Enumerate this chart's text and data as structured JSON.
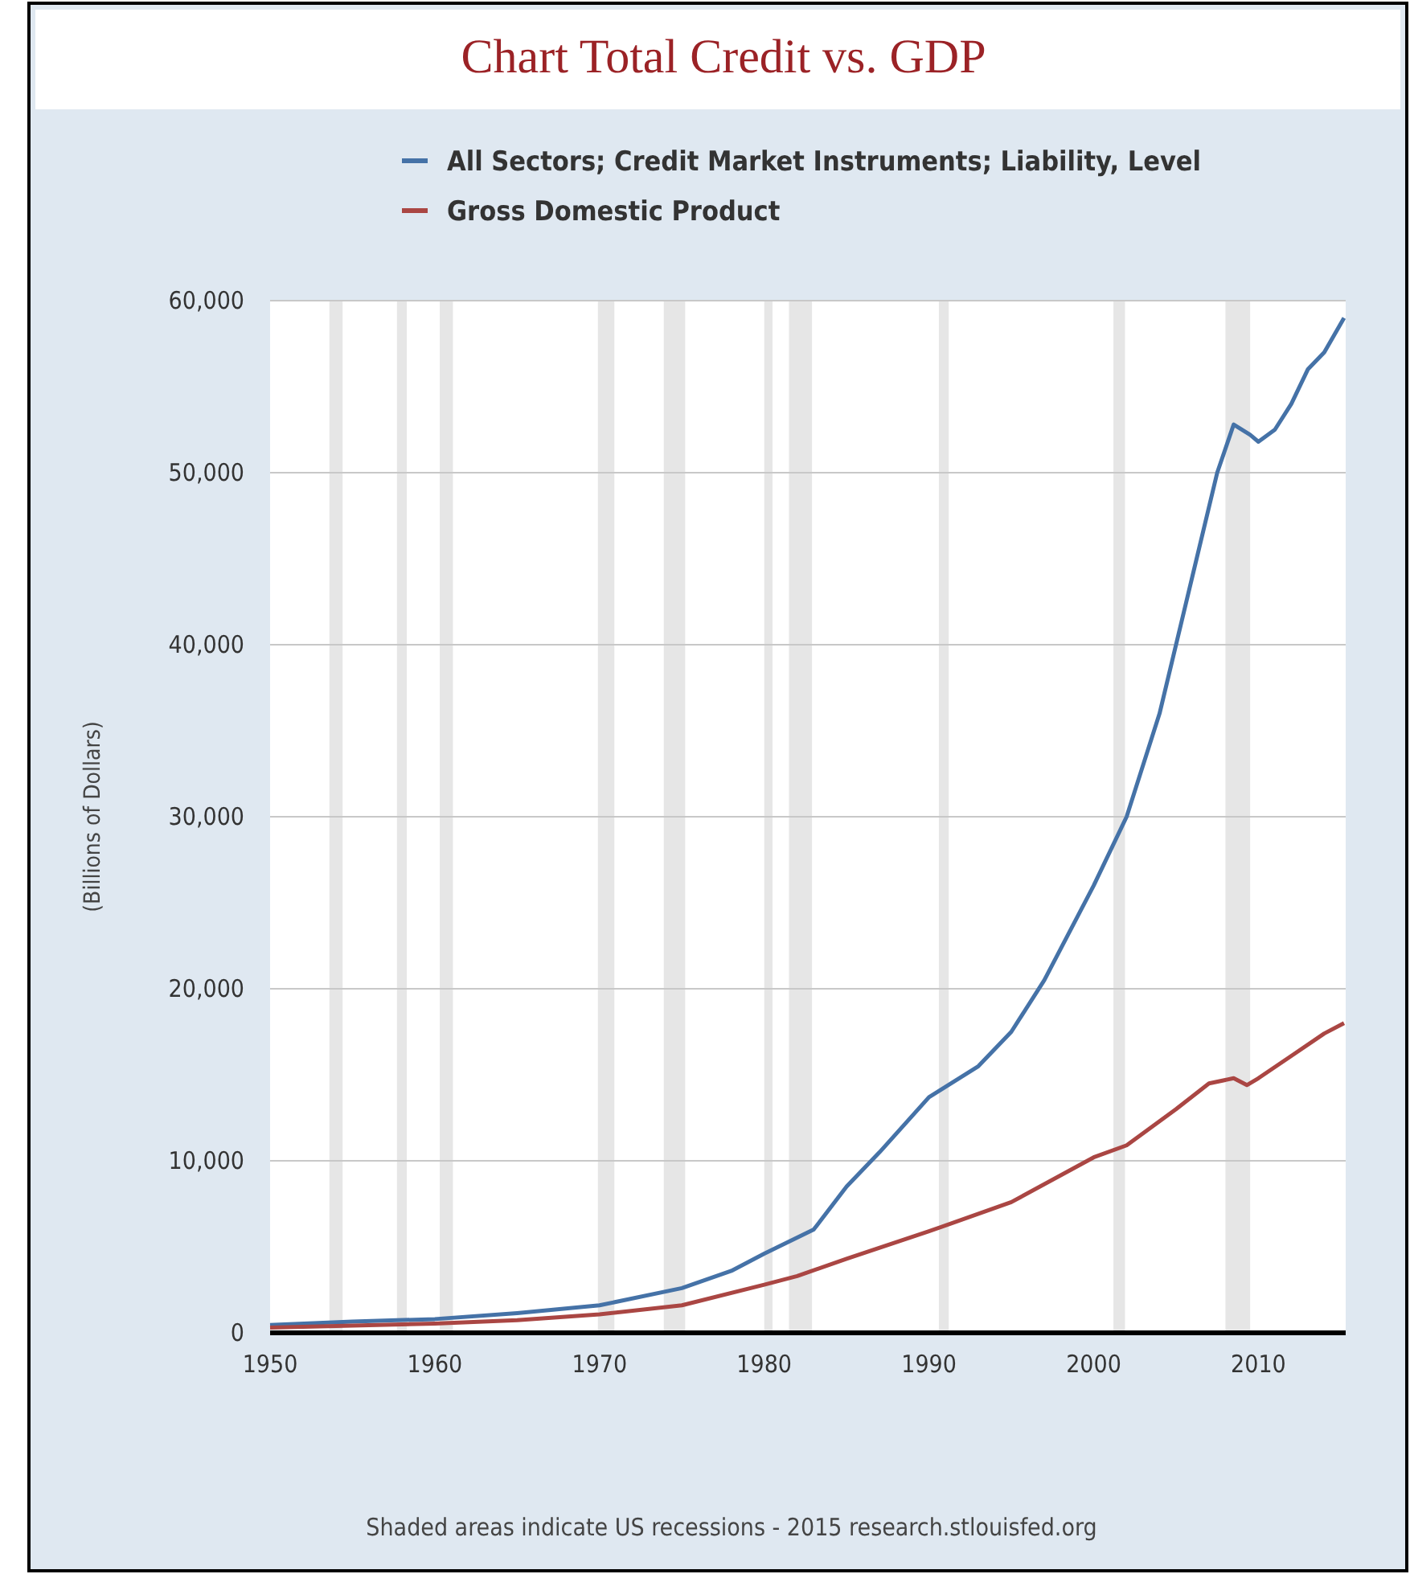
{
  "chart_data": {
    "type": "line",
    "title": "Chart Total Credit vs. GDP",
    "ylabel": "(Billions of Dollars)",
    "annotations": [
      "Shaded areas indicate US recessions - 2015 research.stlouisfed.org"
    ],
    "series": [
      {
        "name": "All Sectors; Credit Market Instruments; Liability, Level",
        "color": "#4572a7",
        "x": [
          1950,
          1955,
          1960,
          1965,
          1970,
          1975,
          1978,
          1980,
          1983,
          1985,
          1987,
          1990,
          1993,
          1995,
          1997,
          2000,
          2002,
          2004,
          2006,
          2007.5,
          2008.5,
          2009.5,
          2010,
          2011,
          2012,
          2013,
          2014,
          2015.2
        ],
        "values": [
          450,
          650,
          800,
          1150,
          1600,
          2600,
          3600,
          4600,
          6000,
          8500,
          10500,
          13700,
          15500,
          17500,
          20500,
          26000,
          30000,
          36000,
          44000,
          50000,
          52800,
          52200,
          51800,
          52500,
          54000,
          56000,
          57000,
          59000
        ]
      },
      {
        "name": "Gross Domestic Product",
        "color": "#aa4643",
        "x": [
          1950,
          1955,
          1960,
          1965,
          1970,
          1975,
          1980,
          1982,
          1985,
          1990,
          1995,
          2000,
          2002,
          2005,
          2007,
          2008.5,
          2009.3,
          2010,
          2012,
          2014,
          2015.2
        ],
        "values": [
          300,
          420,
          540,
          740,
          1070,
          1600,
          2800,
          3300,
          4300,
          5900,
          7600,
          10200,
          10900,
          13000,
          14500,
          14800,
          14400,
          14800,
          16100,
          17400,
          18000
        ]
      }
    ],
    "xlim": [
      1950,
      2015.3
    ],
    "xticks": [
      1950,
      1960,
      1970,
      1980,
      1990,
      2000,
      2010
    ],
    "ylim": [
      0,
      60000
    ],
    "yticks": [
      {
        "value": 0,
        "label": "0"
      },
      {
        "value": 10000,
        "label": "10,000"
      },
      {
        "value": 20000,
        "label": "20,000"
      },
      {
        "value": 30000,
        "label": "30,000"
      },
      {
        "value": 40000,
        "label": "40,000"
      },
      {
        "value": 50000,
        "label": "50,000"
      },
      {
        "value": 60000,
        "label": "60,000"
      }
    ],
    "bands": [
      {
        "axis": "x",
        "from": 1953.6,
        "to": 1954.4,
        "color": "#e6e6e6"
      },
      {
        "axis": "x",
        "from": 1957.7,
        "to": 1958.3,
        "color": "#e6e6e6"
      },
      {
        "axis": "x",
        "from": 1960.3,
        "to": 1961.1,
        "color": "#e6e6e6"
      },
      {
        "axis": "x",
        "from": 1969.9,
        "to": 1970.9,
        "color": "#e6e6e6"
      },
      {
        "axis": "x",
        "from": 1973.9,
        "to": 1975.2,
        "color": "#e6e6e6"
      },
      {
        "axis": "x",
        "from": 1980.0,
        "to": 1980.5,
        "color": "#e6e6e6"
      },
      {
        "axis": "x",
        "from": 1981.5,
        "to": 1982.9,
        "color": "#e6e6e6"
      },
      {
        "axis": "x",
        "from": 1990.6,
        "to": 1991.2,
        "color": "#e6e6e6"
      },
      {
        "axis": "x",
        "from": 2001.2,
        "to": 2001.9,
        "color": "#e6e6e6"
      },
      {
        "axis": "x",
        "from": 2008.0,
        "to": 2009.5,
        "color": "#e6e6e6"
      }
    ],
    "grid": "y",
    "legend": "top left",
    "marker": "none",
    "line_style": "solid"
  }
}
